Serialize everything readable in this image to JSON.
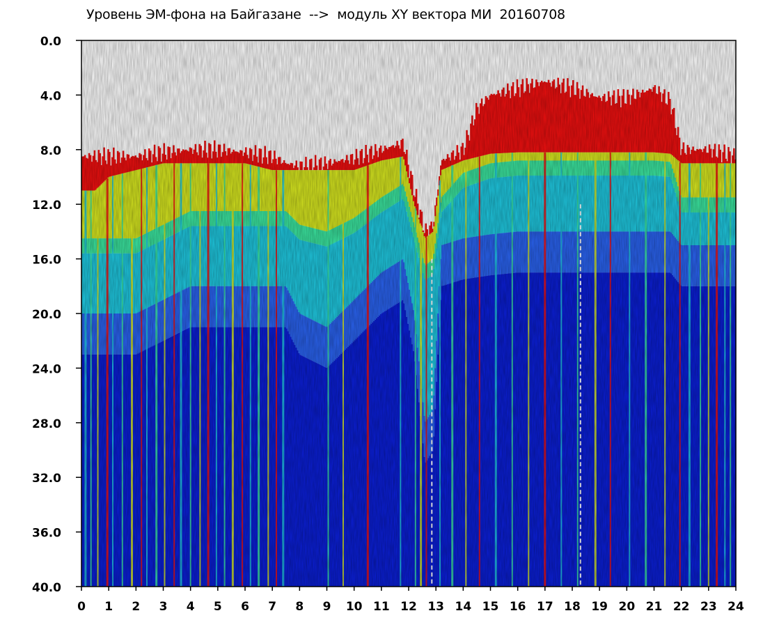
{
  "chart_data": {
    "type": "heatmap",
    "title": "Уровень ЭМ-фона на Байгазане  -->  модуль XY вектора МИ  20160708",
    "x_ticks": [
      "0",
      "1",
      "2",
      "3",
      "4",
      "5",
      "6",
      "7",
      "8",
      "9",
      "10",
      "11",
      "12",
      "13",
      "14",
      "15",
      "16",
      "17",
      "18",
      "19",
      "20",
      "21",
      "22",
      "23",
      "24"
    ],
    "y_ticks": [
      "0.0",
      "4.0",
      "8.0",
      "12.0",
      "16.0",
      "20.0",
      "24.0",
      "28.0",
      "32.0",
      "36.0",
      "40.0"
    ],
    "xlim": [
      0,
      24
    ],
    "ylim": [
      0,
      40
    ],
    "y_inverted": true,
    "colormap": [
      "#0b1fd6",
      "#2a63f0",
      "#1fc8e0",
      "#3be6a0",
      "#c8ea20",
      "#f06a10",
      "#f01010"
    ],
    "colors": {
      "background": "#0b1fd6",
      "low": "#1230e0",
      "mid": "#1fc8e0",
      "high_green": "#3be6a0",
      "high_yellow": "#d8e820",
      "peak": "#f01010"
    },
    "upper_boundary": {
      "hours": [
        0,
        0.5,
        1,
        2,
        3,
        4,
        5,
        6,
        7,
        7.5,
        8,
        9,
        10,
        11,
        11.8,
        12.2,
        12.6,
        12.9,
        13.2,
        14,
        15,
        16,
        17,
        18,
        19,
        20,
        21,
        21.6,
        22,
        23,
        24
      ],
      "level": [
        11,
        11,
        10,
        9.5,
        9,
        9,
        9,
        9,
        9.5,
        9.5,
        9.5,
        9.5,
        9.5,
        8.8,
        8.5,
        12,
        14.5,
        14,
        9.5,
        8.8,
        8.3,
        8.2,
        8.2,
        8.2,
        8.2,
        8.2,
        8.2,
        8.3,
        9,
        9,
        9
      ]
    },
    "red_top": {
      "hours": [
        0,
        1,
        2,
        3,
        4,
        5,
        6,
        7,
        7.5,
        8,
        9,
        10,
        11,
        11.8,
        12.2,
        12.6,
        12.9,
        13.2,
        14,
        14.5,
        15,
        16,
        17,
        18,
        19,
        20,
        21,
        21.6,
        22,
        23,
        24
      ],
      "level": [
        8.5,
        8.5,
        8.5,
        8.2,
        8,
        8,
        8.2,
        8.5,
        9,
        9.2,
        9,
        8.6,
        8,
        7.5,
        11,
        14,
        13.5,
        8.8,
        8,
        5,
        4,
        3.5,
        3,
        3.5,
        4.2,
        4.2,
        3.5,
        4.5,
        8,
        8,
        8.5
      ]
    },
    "yellow_top": {
      "hours": [
        0,
        1,
        2,
        3,
        4,
        5,
        6,
        7,
        7.5,
        8,
        9,
        10,
        11,
        11.8,
        12.2,
        12.6,
        12.9,
        13.2,
        14,
        15,
        16,
        17,
        18,
        19,
        20,
        21,
        21.6,
        22,
        23,
        24
      ],
      "level": [
        14,
        14,
        14,
        13,
        12,
        12,
        12,
        12,
        12,
        13,
        13.5,
        12.5,
        11,
        10,
        13,
        16,
        15.5,
        11,
        9.2,
        8.5,
        8.3,
        8.3,
        8.3,
        8.3,
        8.3,
        8.3,
        8.4,
        11,
        11,
        11
      ]
    },
    "cyan_bottom": {
      "hours": [
        0,
        1,
        2,
        3,
        4,
        5,
        6,
        7,
        7.5,
        8,
        9,
        10,
        11,
        11.8,
        12.2,
        12.6,
        12.9,
        13.2,
        14,
        15,
        16,
        17,
        18,
        19,
        20,
        21,
        21.6,
        22,
        23,
        24
      ],
      "level": [
        20,
        20,
        20,
        19,
        18,
        18,
        18,
        18,
        18,
        20,
        21,
        19,
        17,
        16,
        20,
        28,
        27,
        15,
        14.5,
        14.2,
        14,
        14,
        14,
        14,
        14,
        14,
        14,
        15,
        15,
        15
      ]
    },
    "bright_streaks_hours": [
      0.15,
      0.35,
      0.6,
      0.95,
      1.15,
      1.5,
      1.85,
      2.2,
      2.4,
      2.75,
      3.05,
      3.4,
      3.65,
      4.0,
      4.35,
      4.65,
      4.95,
      5.25,
      5.55,
      5.9,
      6.2,
      6.5,
      6.85,
      7.15,
      7.4,
      9.05,
      9.6,
      10.5,
      11.7,
      12.25,
      12.45,
      12.65,
      13.15,
      13.6,
      14.1,
      14.6,
      15.2,
      15.8,
      16.4,
      17.0,
      17.6,
      18.2,
      18.85,
      19.4,
      20.1,
      20.7,
      21.4,
      21.95,
      22.3,
      22.7,
      23.0,
      23.3,
      23.6,
      23.8
    ],
    "white_dashed_hours": [
      12.85,
      18.3
    ]
  }
}
